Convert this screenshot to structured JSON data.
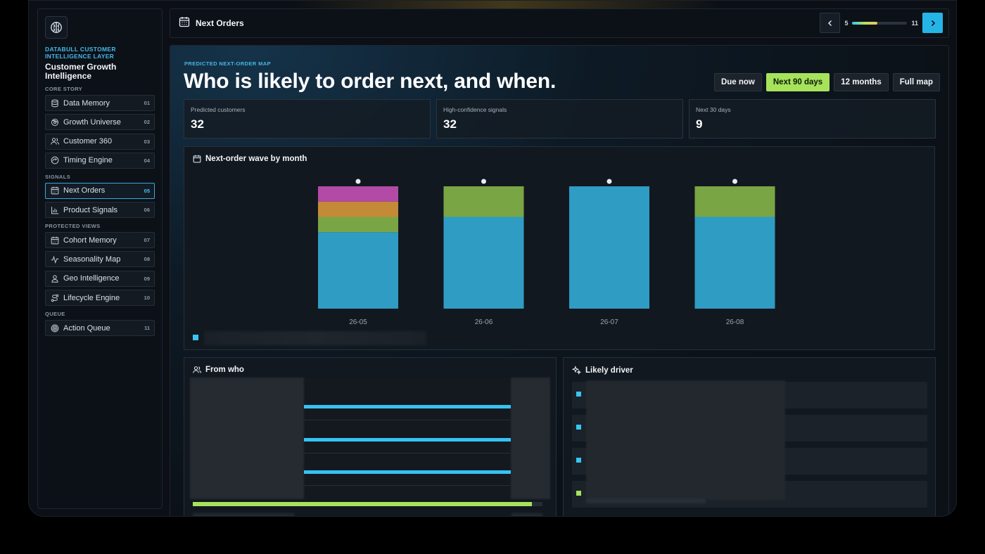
{
  "brand": {
    "subtitle": "DATABULL CUSTOMER INTELLIGENCE LAYER",
    "title": "Customer Growth Intelligence"
  },
  "sidebar": {
    "sections": [
      {
        "label": "CORE STORY",
        "items": [
          {
            "label": "Data Memory",
            "num": "01",
            "icon": "database-icon"
          },
          {
            "label": "Growth Universe",
            "num": "02",
            "icon": "orbit-icon"
          },
          {
            "label": "Customer 360",
            "num": "03",
            "icon": "users-icon"
          },
          {
            "label": "Timing Engine",
            "num": "04",
            "icon": "gauge-icon"
          }
        ]
      },
      {
        "label": "SIGNALS",
        "items": [
          {
            "label": "Next Orders",
            "num": "05",
            "icon": "calendar-icon",
            "active": true
          },
          {
            "label": "Product Signals",
            "num": "06",
            "icon": "bar-chart-icon"
          }
        ]
      },
      {
        "label": "PROTECTED VIEWS",
        "items": [
          {
            "label": "Cohort Memory",
            "num": "07",
            "icon": "calendar-icon"
          },
          {
            "label": "Seasonality Map",
            "num": "08",
            "icon": "pulse-icon"
          },
          {
            "label": "Geo Intelligence",
            "num": "09",
            "icon": "person-pin-icon"
          },
          {
            "label": "Lifecycle Engine",
            "num": "10",
            "icon": "route-icon"
          }
        ]
      },
      {
        "label": "QUEUE",
        "items": [
          {
            "label": "Action Queue",
            "num": "11",
            "icon": "target-icon"
          }
        ]
      }
    ]
  },
  "header": {
    "title": "Next Orders",
    "pager_current": "5",
    "pager_total": "11",
    "pager_progress": 0.45
  },
  "main": {
    "eyebrow": "PREDICTED NEXT-ORDER MAP",
    "headline": "Who is likely to order next, and when.",
    "ranges": [
      {
        "label": "Due now",
        "selected": false
      },
      {
        "label": "Next 90 days",
        "selected": true
      },
      {
        "label": "12 months",
        "selected": false
      },
      {
        "label": "Full map",
        "selected": false
      }
    ],
    "kpis": [
      {
        "label": "Predicted customers",
        "value": "32"
      },
      {
        "label": "High-confidence signals",
        "value": "32"
      },
      {
        "label": "Next 30 days",
        "value": "9"
      }
    ],
    "wave_title": "Next-order wave by month",
    "from_who_title": "From who",
    "from_who_bars": [
      1,
      1,
      1
    ],
    "from_who_progress": 0.97,
    "driver_title": "Likely driver",
    "driver_dots": [
      "#3ac4f2",
      "#3ac4f2",
      "#3ac4f2",
      "#a6e35b"
    ]
  },
  "colors": {
    "accent": "#3ac4f2",
    "highlight": "#a6e35b"
  },
  "chart_data": {
    "type": "bar",
    "title": "Next-order wave by month",
    "categories": [
      "26-05",
      "26-06",
      "26-07",
      "26-08"
    ],
    "series": [
      {
        "values": [
          10,
          12,
          16,
          12
        ],
        "color": "#2f9cc4"
      },
      {
        "values": [
          2,
          4,
          0,
          4
        ],
        "color": "#7aa544"
      },
      {
        "values": [
          2,
          0,
          0,
          0
        ],
        "color": "#c48a38"
      },
      {
        "values": [
          2,
          0,
          0,
          0
        ],
        "color": "#b34ba6"
      }
    ],
    "stacked": true,
    "ylim": [
      0,
      16
    ],
    "grid": false
  }
}
